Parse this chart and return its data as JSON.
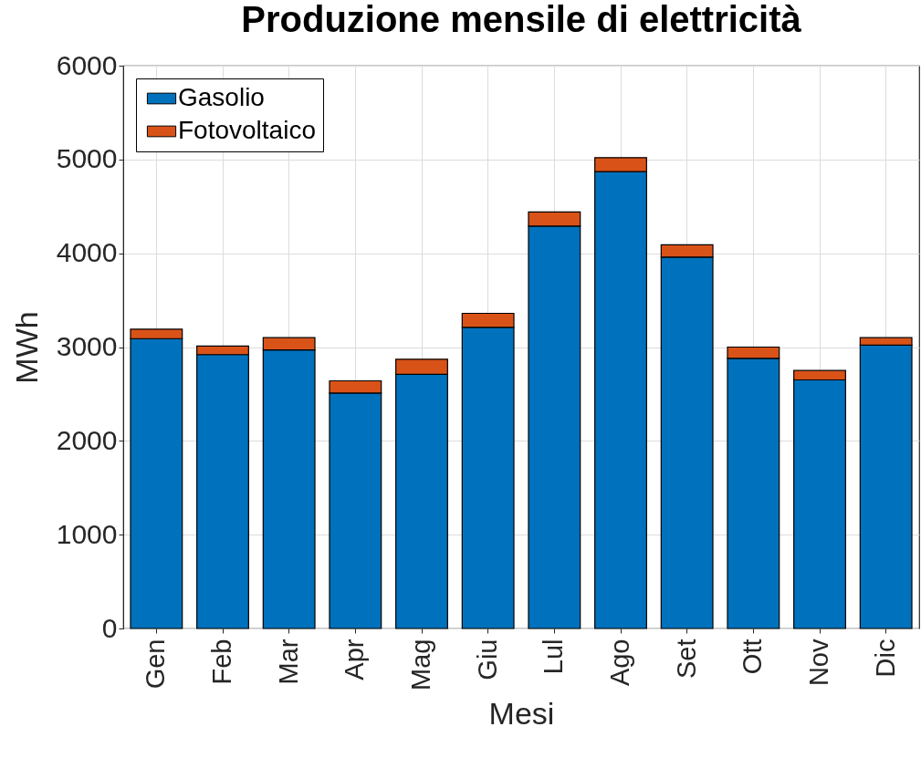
{
  "chart_data": {
    "type": "bar",
    "title": "Produzione mensile di elettricità",
    "xlabel": "Mesi",
    "ylabel": "MWh",
    "categories": [
      "Gen",
      "Feb",
      "Mar",
      "Apr",
      "Mag",
      "Giu",
      "Lul",
      "Ago",
      "Set",
      "Ott",
      "Nov",
      "Dic"
    ],
    "series": [
      {
        "name": "Gasolio",
        "color": "#0072bd",
        "values": [
          3090,
          2920,
          2970,
          2510,
          2710,
          3210,
          4290,
          4870,
          3960,
          2880,
          2650,
          3020
        ]
      },
      {
        "name": "Fotovoltaico",
        "color": "#d95319",
        "values": [
          100,
          90,
          130,
          130,
          160,
          150,
          150,
          150,
          130,
          120,
          100,
          80
        ]
      }
    ],
    "stacked": true,
    "ylim": [
      0,
      6000
    ],
    "yticks": [
      0,
      1000,
      2000,
      3000,
      4000,
      5000,
      6000
    ],
    "grid": true,
    "legend": "top left"
  }
}
